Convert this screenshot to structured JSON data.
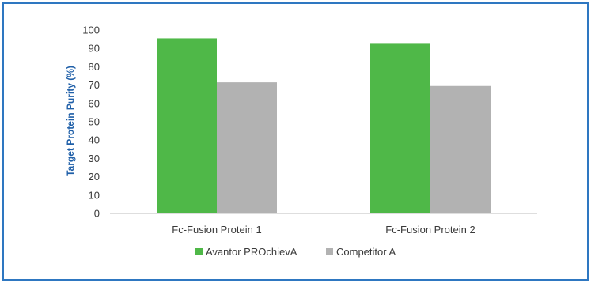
{
  "chart_data": {
    "type": "bar",
    "title": "",
    "xlabel": "",
    "ylabel": "Target Protein Purity (%)",
    "ylim": [
      0,
      100
    ],
    "yticks": [
      0,
      10,
      20,
      30,
      40,
      50,
      60,
      70,
      80,
      90,
      100
    ],
    "categories": [
      "Fc-Fusion Protein 1",
      "Fc-Fusion Protein 2"
    ],
    "series": [
      {
        "name": "Avantor PROchievA",
        "color": "#4fb848",
        "values": [
          95.5,
          92.5
        ]
      },
      {
        "name": "Competitor A",
        "color": "#b2b2b2",
        "values": [
          71.5,
          69.5
        ]
      }
    ],
    "grid": false,
    "legend_position": "bottom-center"
  },
  "colors": {
    "frame_border": "#2e77c1",
    "axis_label": "#1f5fa8",
    "axis": "#bcbcbc"
  }
}
